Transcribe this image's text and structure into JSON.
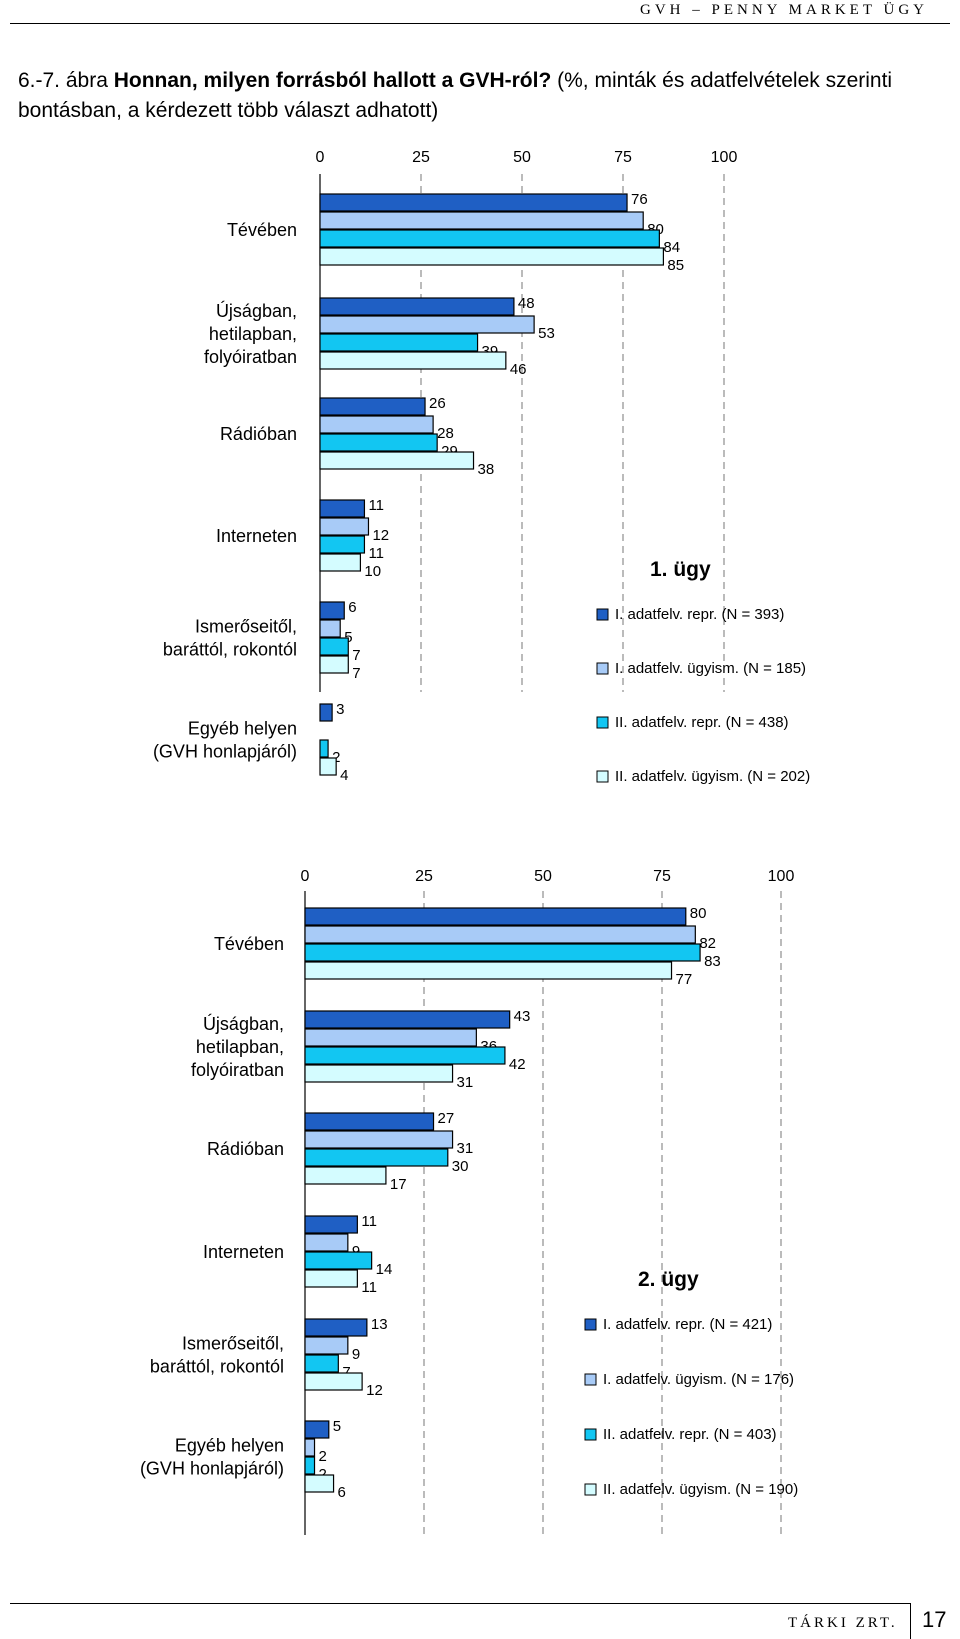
{
  "header": {
    "running_title": "GVH – PENNY MARKET ÜGY"
  },
  "figure": {
    "number": "6.-7. ábra",
    "title_bold": "Honnan, milyen forrásból hallott a GVH-ról?",
    "title_rest": "(%, minták és adatfelvételek szerinti bontásban, a kérdezett több választ adhatott)"
  },
  "colors": {
    "series1": "#1F5FC4",
    "series2": "#A8CBF7",
    "series3": "#12C6F2",
    "series4": "#D4FCFF"
  },
  "chart_data": [
    {
      "type": "bar",
      "orientation": "horizontal",
      "title": "1. ügy",
      "axis_ticks": [
        "0",
        "25",
        "50",
        "75",
        "100"
      ],
      "xlim": [
        0,
        100
      ],
      "grid": true,
      "legend_position": "bottom-right",
      "categories": [
        "Tévében",
        "Újságban, hetilapban, folyóiratban",
        "Rádióban",
        "Interneten",
        "Ismerőseitől, baráttól, rokontól",
        "Egyéb helyen (GVH honlapjáról)"
      ],
      "series": [
        {
          "name": "I. adatfelv. repr. (N = 393)",
          "values": [
            76,
            48,
            26,
            11,
            6,
            3
          ]
        },
        {
          "name": "I. adatfelv. ügyism. (N = 185)",
          "values": [
            80,
            53,
            28,
            12,
            5,
            null
          ]
        },
        {
          "name": "II. adatfelv. repr. (N = 438)",
          "values": [
            84,
            39,
            29,
            11,
            7,
            2
          ]
        },
        {
          "name": "II. adatfelv. ügyism. (N = 202)",
          "values": [
            85,
            46,
            38,
            10,
            7,
            4
          ]
        }
      ]
    },
    {
      "type": "bar",
      "orientation": "horizontal",
      "title": "2. ügy",
      "axis_ticks": [
        "0",
        "25",
        "50",
        "75",
        "100"
      ],
      "xlim": [
        0,
        100
      ],
      "grid": true,
      "legend_position": "bottom-right",
      "categories": [
        "Tévében",
        "Újságban, hetilapban, folyóiratban",
        "Rádióban",
        "Interneten",
        "Ismerőseitől, baráttól, rokontól",
        "Egyéb helyen (GVH honlapjáról)"
      ],
      "series": [
        {
          "name": "I. adatfelv. repr. (N = 421)",
          "values": [
            80,
            43,
            27,
            11,
            13,
            5
          ]
        },
        {
          "name": "I. adatfelv. ügyism. (N = 176)",
          "values": [
            82,
            36,
            31,
            9,
            9,
            2
          ]
        },
        {
          "name": "II. adatfelv. repr. (N = 403)",
          "values": [
            83,
            42,
            30,
            14,
            7,
            2
          ]
        },
        {
          "name": "II. adatfelv. ügyism. (N = 190)",
          "values": [
            77,
            31,
            17,
            11,
            12,
            6
          ]
        }
      ]
    }
  ],
  "footer": {
    "org": "TÁRKI ZRT.",
    "page": "17"
  }
}
